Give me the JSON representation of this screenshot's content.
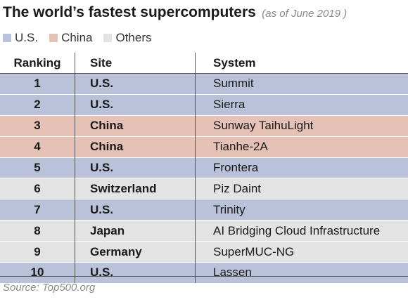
{
  "title": "The world’s fastest supercomputers",
  "subtitle": "(as of June 2019 )",
  "legend": [
    {
      "label": "U.S.",
      "color": "#b9c2d9"
    },
    {
      "label": "China",
      "color": "#e6c1b5"
    },
    {
      "label": "Others",
      "color": "#e3e3e3"
    }
  ],
  "chart_data": {
    "type": "table",
    "columns": [
      "Ranking",
      "Site",
      "System"
    ],
    "rows": [
      {
        "rank": "1",
        "site": "U.S.",
        "system": "Summit",
        "group": "U.S."
      },
      {
        "rank": "2",
        "site": "U.S.",
        "system": "Sierra",
        "group": "U.S."
      },
      {
        "rank": "3",
        "site": "China",
        "system": "Sunway TaihuLight",
        "group": "China"
      },
      {
        "rank": "4",
        "site": "China",
        "system": "Tianhe-2A",
        "group": "China"
      },
      {
        "rank": "5",
        "site": "U.S.",
        "system": "Frontera",
        "group": "U.S."
      },
      {
        "rank": "6",
        "site": "Switzerland",
        "system": "Piz Daint",
        "group": "Others"
      },
      {
        "rank": "7",
        "site": "U.S.",
        "system": "Trinity",
        "group": "U.S."
      },
      {
        "rank": "8",
        "site": "Japan",
        "system": "AI Bridging Cloud Infrastructure",
        "group": "Others"
      },
      {
        "rank": "9",
        "site": "Germany",
        "system": "SuperMUC-NG",
        "group": "Others"
      },
      {
        "rank": "10",
        "site": "U.S.",
        "system": "Lassen",
        "group": "U.S."
      }
    ]
  },
  "source": "Source: Top500.org"
}
